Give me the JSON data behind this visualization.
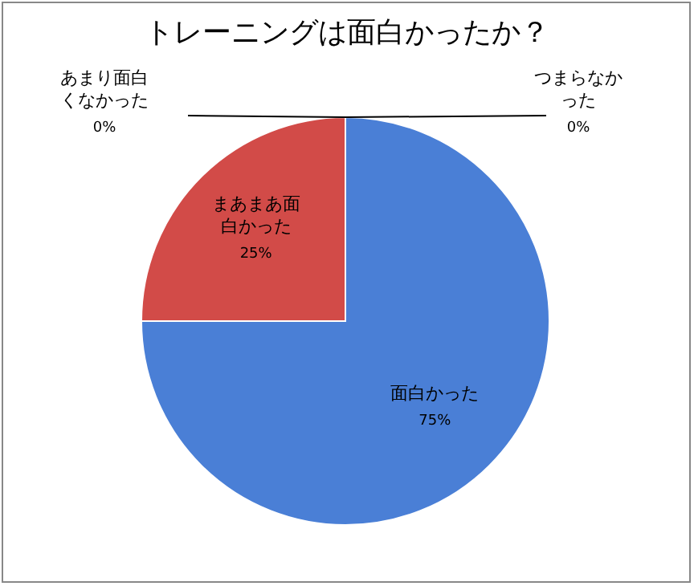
{
  "chart_data": {
    "type": "pie",
    "title": "トレーニングは面白かったか？",
    "categories": [
      "面白かった",
      "まあまあ面白かった",
      "あまり面白くなかった",
      "つまらなかった"
    ],
    "values": [
      75,
      25,
      0,
      0
    ],
    "colors": [
      "#4a7fd6",
      "#d24b48",
      "#9bbb59",
      "#8064a2"
    ],
    "value_labels": [
      "75%",
      "25%",
      "0%",
      "0%"
    ],
    "legend": false
  }
}
